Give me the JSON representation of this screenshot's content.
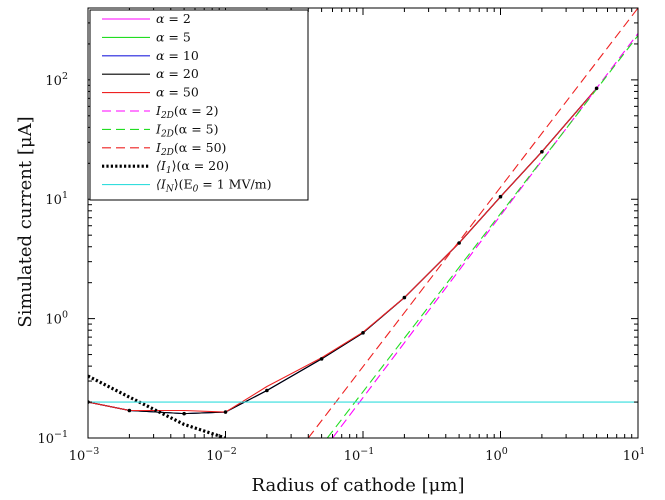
{
  "chart_data": {
    "type": "line",
    "xlabel": "Radius of cathode [μm]",
    "ylabel": "Simulated current [μA]",
    "xscale": "log",
    "yscale": "log",
    "xlim": [
      0.001,
      10
    ],
    "ylim": [
      0.1,
      400
    ],
    "x_ticks": [
      0.001,
      0.01,
      0.1,
      1,
      10
    ],
    "x_tick_labels": [
      {
        "base": "10",
        "exp": "−3"
      },
      {
        "base": "10",
        "exp": "−2"
      },
      {
        "base": "10",
        "exp": "−1"
      },
      {
        "base": "10",
        "exp": "0"
      },
      {
        "base": "10",
        "exp": "1"
      }
    ],
    "y_ticks": [
      0.1,
      1,
      10,
      100
    ],
    "y_tick_labels": [
      {
        "base": "10",
        "exp": "−1"
      },
      {
        "base": "10",
        "exp": "0"
      },
      {
        "base": "10",
        "exp": "1"
      },
      {
        "base": "10",
        "exp": "2"
      }
    ],
    "grid": false,
    "legend_position": "top-left",
    "series": [
      {
        "name": "α = 2",
        "color": "#ff00ff",
        "style": "solid",
        "x": [
          0.001,
          0.002,
          0.005,
          0.01,
          0.02,
          0.05,
          0.1,
          0.2,
          0.5,
          1,
          2,
          5
        ],
        "y": [
          0.2,
          0.17,
          0.16,
          0.165,
          0.25,
          0.46,
          0.76,
          1.5,
          4.3,
          10.5,
          25,
          85
        ]
      },
      {
        "name": "α = 5",
        "color": "#22dd22",
        "style": "solid",
        "x": [
          0.001,
          0.002,
          0.005,
          0.01,
          0.02,
          0.05,
          0.1,
          0.2,
          0.5,
          1,
          2,
          5
        ],
        "y": [
          0.2,
          0.17,
          0.16,
          0.165,
          0.25,
          0.46,
          0.76,
          1.5,
          4.3,
          10.5,
          25,
          85
        ]
      },
      {
        "name": "α = 10",
        "color": "#2222dd",
        "style": "solid",
        "x": [
          0.001,
          0.002,
          0.005,
          0.01,
          0.02,
          0.05,
          0.1,
          0.2,
          0.5,
          1,
          2,
          5
        ],
        "y": [
          0.2,
          0.17,
          0.16,
          0.165,
          0.25,
          0.46,
          0.76,
          1.5,
          4.3,
          10.5,
          25,
          85
        ]
      },
      {
        "name": "α = 20",
        "color": "#000000",
        "style": "solid",
        "x": [
          0.001,
          0.002,
          0.005,
          0.01,
          0.02,
          0.05,
          0.1,
          0.2,
          0.5,
          1,
          2,
          5
        ],
        "y": [
          0.2,
          0.17,
          0.16,
          0.165,
          0.25,
          0.46,
          0.76,
          1.5,
          4.3,
          10.5,
          25,
          85
        ]
      },
      {
        "name": "α = 50",
        "color": "#ee2222",
        "style": "solid",
        "x": [
          0.001,
          0.002,
          0.005,
          0.01,
          0.02,
          0.05,
          0.1,
          0.2,
          0.5,
          1,
          2,
          5
        ],
        "y": [
          0.2,
          0.17,
          0.17,
          0.165,
          0.27,
          0.47,
          0.77,
          1.5,
          4.3,
          10.5,
          25,
          85
        ]
      },
      {
        "name": "I2D(α = 2)",
        "color": "#ff00ff",
        "style": "dashed",
        "x": [
          0.06,
          10
        ],
        "y": [
          0.1,
          245
        ]
      },
      {
        "name": "I2D(α = 5)",
        "color": "#22dd22",
        "style": "dashed",
        "x": [
          0.055,
          10
        ],
        "y": [
          0.1,
          235
        ]
      },
      {
        "name": "I2D(α = 50)",
        "color": "#ee2222",
        "style": "dashed",
        "x": [
          0.04,
          10
        ],
        "y": [
          0.1,
          400
        ]
      },
      {
        "name": "⟨I1⟩(α = 20)",
        "color": "#000000",
        "style": "dotted-thick",
        "x": [
          0.001,
          0.002,
          0.005,
          0.01
        ],
        "y": [
          0.33,
          0.22,
          0.13,
          0.1
        ]
      },
      {
        "name": "⟨IN⟩(E0 = 1 MV/m)",
        "color": "#33dddd",
        "style": "solid",
        "x": [
          0.001,
          10
        ],
        "y": [
          0.2,
          0.2
        ]
      }
    ],
    "markers": {
      "color": "#000000",
      "x": [
        0.001,
        0.002,
        0.005,
        0.01,
        0.02,
        0.05,
        0.1,
        0.2,
        0.5,
        1,
        2,
        5
      ],
      "y": [
        0.2,
        0.17,
        0.16,
        0.165,
        0.25,
        0.46,
        0.76,
        1.5,
        4.3,
        10.5,
        25,
        85
      ]
    },
    "legend": [
      {
        "series": 0,
        "sym": "α",
        "op": " = 2"
      },
      {
        "series": 1,
        "sym": "α",
        "op": " = 5"
      },
      {
        "series": 2,
        "sym": "α",
        "op": " = 10"
      },
      {
        "series": 3,
        "sym": "α",
        "op": " = 20"
      },
      {
        "series": 4,
        "sym": "α",
        "op": " = 50"
      },
      {
        "series": 5,
        "label": "I",
        "sub": "2D",
        "rest": "(α = 2)"
      },
      {
        "series": 6,
        "label": "I",
        "sub": "2D",
        "rest": "(α = 5)"
      },
      {
        "series": 7,
        "label": "I",
        "sub": "2D",
        "rest": "(α = 50)"
      },
      {
        "series": 8,
        "label": "⟨I",
        "sub": "1",
        "rest": "⟩(α = 20)"
      },
      {
        "series": 9,
        "label": "⟨I",
        "sub": "N",
        "rest": "⟩(E",
        "sub2": "0",
        "rest2": " = 1 MV/m)"
      }
    ]
  }
}
